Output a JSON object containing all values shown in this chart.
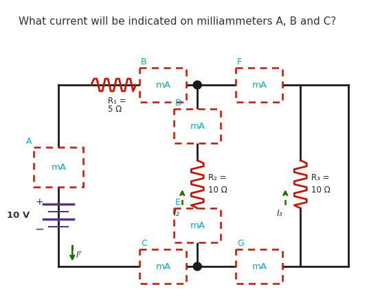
{
  "title": "What current will be indicated on milliammeters A, B and C?",
  "title_fontsize": 11,
  "bg_color": "#ffffff",
  "wire_color": "#1a1a1a",
  "resistor_color": "#cc1100",
  "ammeter_box_color": "#cc1100",
  "ammeter_text_color": "#00aacc",
  "label_color": "#00aacc",
  "arrow_color": "#226600",
  "battery_color": "#553388",
  "junction_color": "#1a1a1a",
  "R1_label_line1": "R₁ =",
  "R1_label_line2": "5 Ω",
  "R2_label_line1": "R₂ =",
  "R2_label_line2": "10 Ω",
  "R3_label_line1": "R₃ =",
  "R3_label_line2": "10 Ω",
  "voltage_label": "10 V",
  "I2_label": "I₂",
  "I3_label": "I₃",
  "IT_label": "Iᵀ",
  "plus_label": "+",
  "minus_label": "−"
}
